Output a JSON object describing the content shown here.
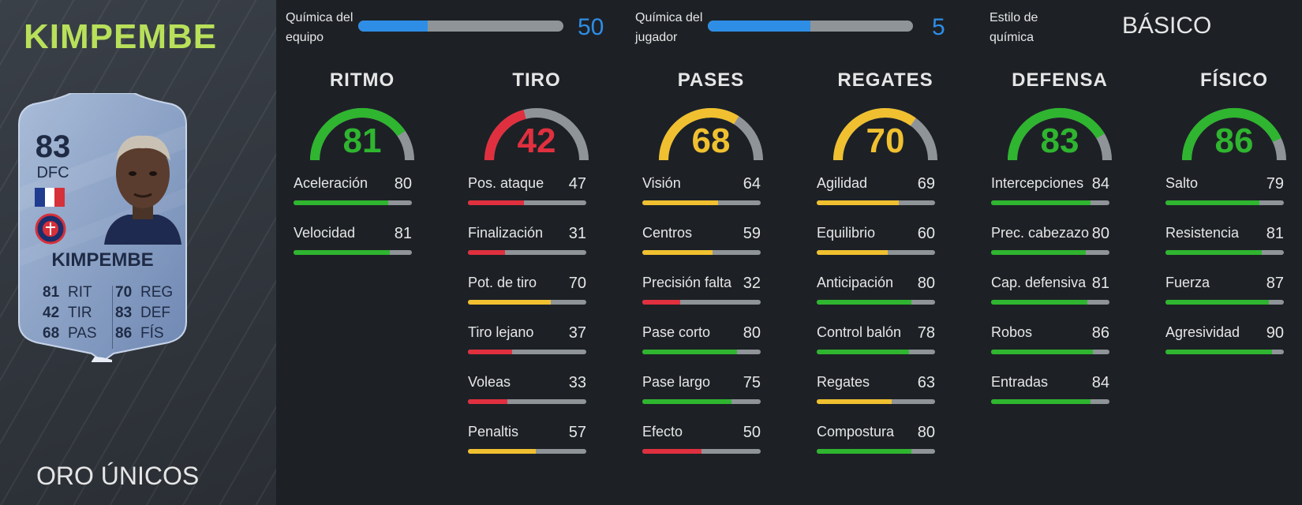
{
  "colors": {
    "green": "#2fb52f",
    "yellow": "#f0c030",
    "red": "#e0303f",
    "gray": "#8f9499",
    "blue": "#2e8ee6",
    "name_green": "#b8e05a"
  },
  "player": {
    "name": "KIMPEMBE",
    "card_type": "ORO ÚNICOS"
  },
  "card": {
    "rating": "83",
    "position": "DFC",
    "name": "KIMPEMBE",
    "stats": [
      {
        "value": "81",
        "label": "RIT"
      },
      {
        "value": "70",
        "label": "REG"
      },
      {
        "value": "42",
        "label": "TIR"
      },
      {
        "value": "83",
        "label": "DEF"
      },
      {
        "value": "68",
        "label": "PAS"
      },
      {
        "value": "86",
        "label": "FÍS"
      }
    ]
  },
  "chemistry": {
    "team": {
      "label_1": "Química del",
      "label_2": "equipo",
      "value": "50",
      "fraction": 0.34
    },
    "player": {
      "label_1": "Química del",
      "label_2": "jugador",
      "value": "5",
      "fraction": 0.5
    },
    "style": {
      "label_1": "Estilo de",
      "label_2": "química",
      "value": "BÁSICO"
    }
  },
  "categories": [
    {
      "title": "RITMO",
      "value": "81",
      "color": "green",
      "stats": [
        {
          "name": "Aceleración",
          "value": "80",
          "color": "green"
        },
        {
          "name": "Velocidad",
          "value": "81",
          "color": "green"
        }
      ]
    },
    {
      "title": "TIRO",
      "value": "42",
      "color": "red",
      "stats": [
        {
          "name": "Pos. ataque",
          "value": "47",
          "color": "red"
        },
        {
          "name": "Finalización",
          "value": "31",
          "color": "red"
        },
        {
          "name": "Pot. de tiro",
          "value": "70",
          "color": "yellow"
        },
        {
          "name": "Tiro lejano",
          "value": "37",
          "color": "red"
        },
        {
          "name": "Voleas",
          "value": "33",
          "color": "red"
        },
        {
          "name": "Penaltis",
          "value": "57",
          "color": "yellow"
        }
      ]
    },
    {
      "title": "PASES",
      "value": "68",
      "color": "yellow",
      "stats": [
        {
          "name": "Visión",
          "value": "64",
          "color": "yellow"
        },
        {
          "name": "Centros",
          "value": "59",
          "color": "yellow"
        },
        {
          "name": "Precisión falta",
          "value": "32",
          "color": "red"
        },
        {
          "name": "Pase corto",
          "value": "80",
          "color": "green"
        },
        {
          "name": "Pase largo",
          "value": "75",
          "color": "green"
        },
        {
          "name": "Efecto",
          "value": "50",
          "color": "red"
        }
      ]
    },
    {
      "title": "REGATES",
      "value": "70",
      "color": "yellow",
      "stats": [
        {
          "name": "Agilidad",
          "value": "69",
          "color": "yellow"
        },
        {
          "name": "Equilibrio",
          "value": "60",
          "color": "yellow"
        },
        {
          "name": "Anticipación",
          "value": "80",
          "color": "green"
        },
        {
          "name": "Control balón",
          "value": "78",
          "color": "green"
        },
        {
          "name": "Regates",
          "value": "63",
          "color": "yellow"
        },
        {
          "name": "Compostura",
          "value": "80",
          "color": "green"
        }
      ]
    },
    {
      "title": "DEFENSA",
      "value": "83",
      "color": "green",
      "stats": [
        {
          "name": "Intercepciones",
          "value": "84",
          "color": "green"
        },
        {
          "name": "Prec. cabezazo",
          "value": "80",
          "color": "green"
        },
        {
          "name": "Cap. defensiva",
          "value": "81",
          "color": "green"
        },
        {
          "name": "Robos",
          "value": "86",
          "color": "green"
        },
        {
          "name": "Entradas",
          "value": "84",
          "color": "green"
        }
      ]
    },
    {
      "title": "FÍSICO",
      "value": "86",
      "color": "green",
      "stats": [
        {
          "name": "Salto",
          "value": "79",
          "color": "green"
        },
        {
          "name": "Resistencia",
          "value": "81",
          "color": "green"
        },
        {
          "name": "Fuerza",
          "value": "87",
          "color": "green"
        },
        {
          "name": "Agresividad",
          "value": "90",
          "color": "green"
        }
      ]
    }
  ]
}
